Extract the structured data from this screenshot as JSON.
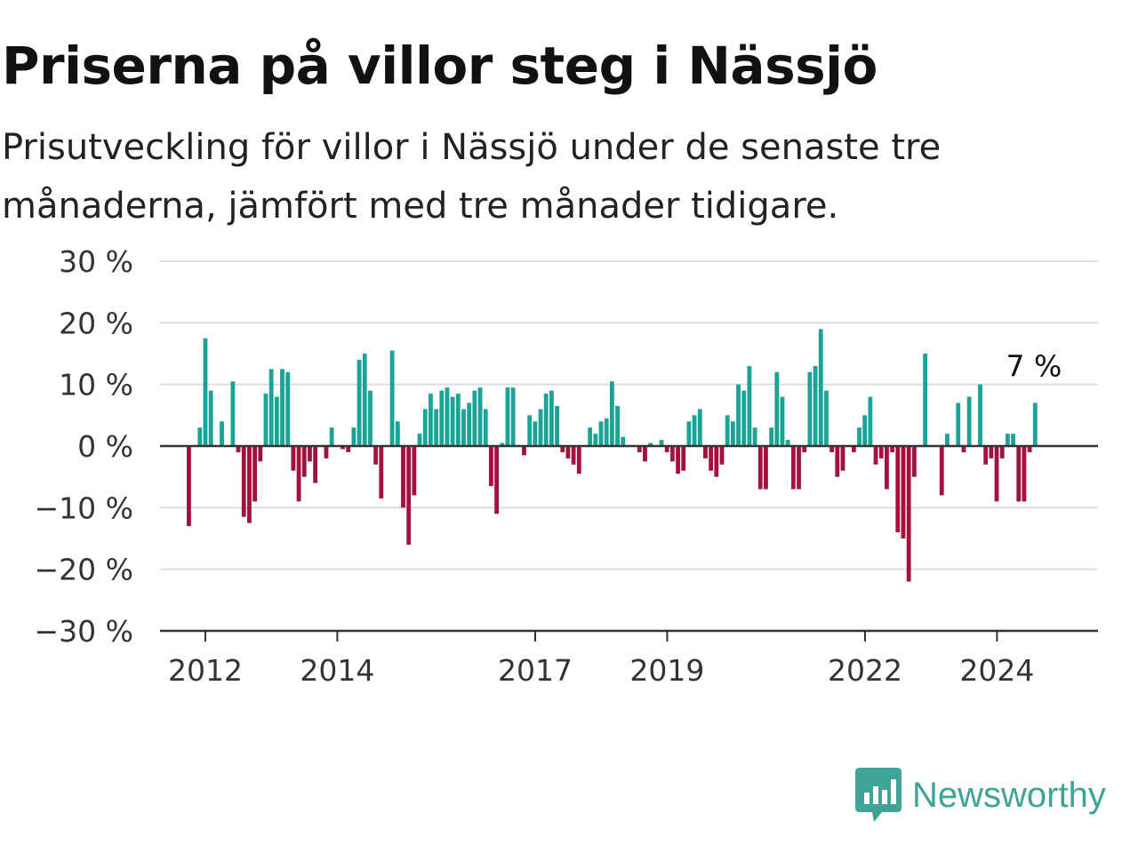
{
  "title": "Priserna på villor steg i Nässjö",
  "subtitle": "Prisutveckling för villor i Nässjö under de senaste tre månaderna, jämfört med tre månader tidigare.",
  "brand": {
    "name": "Newsworthy",
    "logo_icon": "bar-chart-speech-bubble-icon"
  },
  "colors": {
    "positive": "#1aa397",
    "negative": "#a3123f",
    "grid": "#dddddd",
    "axis": "#333333",
    "brand": "#3fa397"
  },
  "chart_data": {
    "type": "bar",
    "title": "Priserna på villor steg i Nässjö",
    "ylim": [
      -30,
      30
    ],
    "y_ticks": [
      30,
      20,
      10,
      0,
      -10,
      -20,
      -30
    ],
    "y_tick_labels": [
      "30 %",
      "20 %",
      "10 %",
      "0 %",
      "−10 %",
      "−20 %",
      "−30 %"
    ],
    "x_ticks": [
      2012,
      2014,
      2017,
      2019,
      2022,
      2024
    ],
    "x_tick_labels": [
      "2012",
      "2014",
      "2017",
      "2019",
      "2022",
      "2024"
    ],
    "x_start": 2011.75,
    "x_step": 0.0833,
    "grid": true,
    "annotation": {
      "text": "7 %",
      "target": "last"
    },
    "values": [
      -13,
      0,
      3,
      17.5,
      9,
      0,
      4,
      0,
      10.5,
      -1,
      -11.5,
      -12.5,
      -9,
      -2.5,
      8.5,
      12.5,
      8,
      12.5,
      12,
      -4,
      -9,
      -5,
      -2.5,
      -6,
      0,
      -2,
      3,
      0,
      -0.5,
      -1,
      3,
      14,
      15,
      9,
      -3,
      -8.5,
      0,
      15.5,
      4,
      -10,
      -16,
      -8,
      2,
      6,
      8.5,
      6,
      9,
      9.5,
      8,
      8.5,
      6,
      7,
      9,
      9.5,
      6,
      -6.5,
      -11,
      0.5,
      9.5,
      9.5,
      0,
      -1.5,
      5,
      4,
      6,
      8.5,
      9,
      6.5,
      -1,
      -2,
      -3,
      -4.5,
      0,
      3,
      2,
      4,
      4.5,
      10.5,
      6.5,
      1.5,
      0,
      0,
      -1,
      -2.5,
      0.5,
      0,
      1,
      -1,
      -2.5,
      -4.5,
      -4,
      4,
      5,
      6,
      -2,
      -4,
      -5,
      -3,
      5,
      4,
      10,
      9,
      13,
      3,
      -7,
      -7,
      3,
      12,
      8,
      1,
      -7,
      -7,
      -1,
      12,
      13,
      19,
      9,
      -1,
      -5,
      -4,
      0,
      -1,
      3,
      5,
      8,
      -3,
      -2,
      -7,
      -1,
      -14,
      -15,
      -22,
      -5,
      0,
      15,
      0,
      0,
      -8,
      2,
      0,
      7,
      -1,
      8,
      0,
      10,
      -3,
      -2,
      -9,
      -2,
      2,
      2,
      -9,
      -9,
      -1,
      7
    ]
  }
}
